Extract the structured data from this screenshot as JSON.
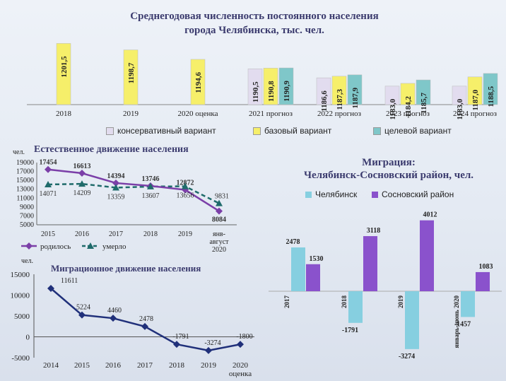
{
  "charts": {
    "population": {
      "title_line1": "Среднегодовая численность постоянного населения",
      "title_line2": "города Челябинска, тыс. чел.",
      "legend": [
        "консервативный вариант",
        "базовый вариант",
        "целевой вариант"
      ],
      "colors": {
        "conservative": "#e2dcef",
        "base": "#f6ef6a",
        "target": "#7fc7c9",
        "single": "#f6ef6a"
      }
    },
    "natural": {
      "title": "Естественное движение населения",
      "unit": "чел.",
      "yticks": [
        "19000",
        "17000",
        "15000",
        "13000",
        "11000",
        "9000",
        "7000",
        "5000"
      ],
      "legend": [
        "родилось",
        "умерло"
      ],
      "colors": {
        "born": "#7b3fa8",
        "died": "#1f6b6b"
      }
    },
    "migration_flow": {
      "title": "Миграционное движение населения",
      "unit": "чел.",
      "yticks": [
        "15000",
        "10000",
        "5000",
        "0",
        "-5000"
      ],
      "color": "#20307a"
    },
    "migration": {
      "title_line1": "Миграция:",
      "title_line2": "Челябинск-Сосновский район, чел.",
      "legend": [
        "Челябинск",
        "Сосновский район"
      ],
      "colors": {
        "chelyabinsk": "#86cfe0",
        "sosnovsky": "#8a52cc"
      }
    }
  },
  "chart_data": [
    {
      "type": "bar",
      "title": "Среднегодовая численность постоянного населения города Челябинска, тыс. чел.",
      "categories": [
        "2018",
        "2019",
        "2020 оценка",
        "2021 прогноз",
        "2022 прогноз",
        "2023 прогноз",
        "2024 прогноз"
      ],
      "series": [
        {
          "name": "консервативный вариант",
          "values": [
            null,
            null,
            null,
            1190.5,
            1186.6,
            1183.0,
            1183.0
          ]
        },
        {
          "name": "базовый вариант",
          "values": [
            1201.5,
            1198.7,
            1194.6,
            1190.8,
            1187.3,
            1184.2,
            1187.0
          ]
        },
        {
          "name": "целевой вариант",
          "values": [
            null,
            null,
            null,
            1190.9,
            1187.9,
            1185.7,
            1188.5
          ]
        }
      ],
      "value_labels": {
        "консервативный вариант": [
          null,
          null,
          null,
          "1190,5",
          "1186,6",
          "1183,0",
          "1183,0"
        ],
        "базовый вариант": [
          "1201,5",
          "1198,7",
          "1194,6",
          "1190,8",
          "1187,3",
          "1184,2",
          "1187,0"
        ],
        "целевой вариант": [
          null,
          null,
          null,
          "1190,9",
          "1187,9",
          "1185,7",
          "1188,5"
        ]
      }
    },
    {
      "type": "line",
      "title": "Естественное движение населения",
      "ylabel": "чел.",
      "categories": [
        "2015",
        "2016",
        "2017",
        "2018",
        "2019",
        "янв-август 2020"
      ],
      "ylim": [
        5000,
        19000
      ],
      "series": [
        {
          "name": "родилось",
          "values": [
            17454,
            16613,
            14394,
            13746,
            12872,
            8084
          ]
        },
        {
          "name": "умерло",
          "values": [
            14071,
            14209,
            13359,
            13607,
            13656,
            9831
          ]
        }
      ]
    },
    {
      "type": "line",
      "title": "Миграционное движение населения",
      "ylabel": "чел.",
      "categories": [
        "2014",
        "2015",
        "2016",
        "2017",
        "2018",
        "2019",
        "2020 оценка"
      ],
      "ylim": [
        -5000,
        15000
      ],
      "series": [
        {
          "values": [
            11611,
            5224,
            4460,
            2478,
            -1791,
            -3274,
            -1800
          ]
        }
      ]
    },
    {
      "type": "bar",
      "title": "Миграция: Челябинск-Сосновский район, чел.",
      "categories": [
        "2017",
        "2018",
        "2019",
        "январь-июнь 2020"
      ],
      "series": [
        {
          "name": "Челябинск",
          "values": [
            2478,
            -1791,
            -3274,
            -1457
          ]
        },
        {
          "name": "Сосновский район",
          "values": [
            1530,
            3118,
            4012,
            1083
          ]
        }
      ]
    }
  ]
}
